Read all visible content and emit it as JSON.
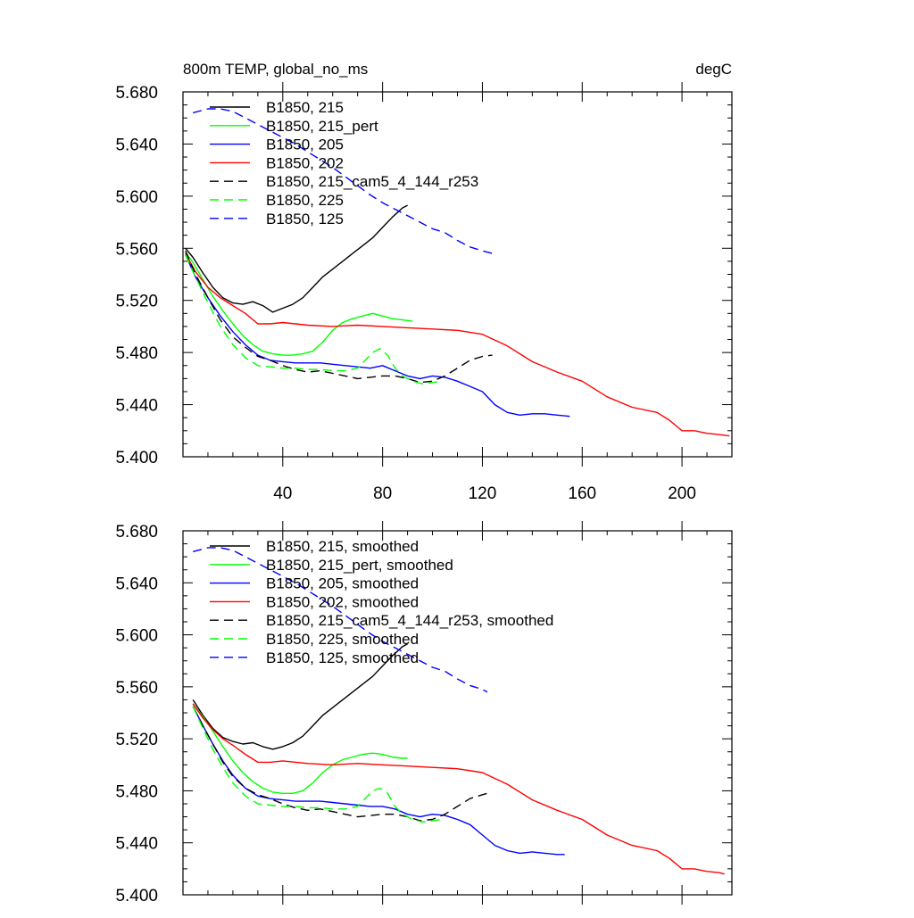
{
  "figure": {
    "title_left": "800m TEMP, global_no_ms",
    "title_right": "degC"
  },
  "chart_data": [
    {
      "type": "line",
      "panel": "top",
      "xlim": [
        0,
        220
      ],
      "ylim": [
        5.4,
        5.68
      ],
      "yticks": [
        "5.400",
        "5.440",
        "5.480",
        "5.520",
        "5.560",
        "5.600",
        "5.640",
        "5.680"
      ],
      "xticks": [
        "40",
        "80",
        "120",
        "160",
        "200"
      ],
      "legend_position": "top-left",
      "grid": false,
      "series": [
        {
          "name": "B1850, 215",
          "color": "#000000",
          "dash": false,
          "x": [
            1,
            4,
            8,
            12,
            16,
            20,
            24,
            28,
            32,
            36,
            40,
            44,
            48,
            52,
            56,
            60,
            64,
            68,
            72,
            76,
            80,
            84,
            88,
            90
          ],
          "y": [
            5.56,
            5.553,
            5.541,
            5.53,
            5.522,
            5.518,
            5.517,
            5.519,
            5.516,
            5.511,
            5.514,
            5.517,
            5.522,
            5.53,
            5.538,
            5.544,
            5.55,
            5.556,
            5.562,
            5.568,
            5.576,
            5.584,
            5.591,
            5.593
          ]
        },
        {
          "name": "B1850, 215_pert",
          "color": "#00ff00",
          "dash": false,
          "x": [
            1,
            4,
            8,
            12,
            16,
            20,
            24,
            28,
            32,
            36,
            40,
            44,
            48,
            52,
            56,
            60,
            64,
            68,
            72,
            76,
            80,
            84,
            88,
            92
          ],
          "y": [
            5.557,
            5.549,
            5.536,
            5.523,
            5.512,
            5.502,
            5.493,
            5.486,
            5.481,
            5.479,
            5.478,
            5.478,
            5.479,
            5.481,
            5.488,
            5.497,
            5.503,
            5.506,
            5.508,
            5.51,
            5.508,
            5.506,
            5.505,
            5.504
          ]
        },
        {
          "name": "B1850, 205",
          "color": "#0000ff",
          "dash": false,
          "x": [
            1,
            5,
            10,
            15,
            20,
            25,
            30,
            35,
            40,
            45,
            50,
            55,
            60,
            65,
            70,
            75,
            80,
            85,
            90,
            95,
            100,
            105,
            110,
            115,
            120,
            125,
            130,
            135,
            140,
            145,
            150,
            155
          ],
          "y": [
            5.555,
            5.538,
            5.522,
            5.508,
            5.496,
            5.486,
            5.478,
            5.474,
            5.473,
            5.472,
            5.472,
            5.472,
            5.471,
            5.47,
            5.469,
            5.468,
            5.47,
            5.466,
            5.462,
            5.46,
            5.462,
            5.461,
            5.458,
            5.454,
            5.45,
            5.44,
            5.434,
            5.432,
            5.433,
            5.433,
            5.432,
            5.431
          ]
        },
        {
          "name": "B1850, 202",
          "color": "#ff0000",
          "dash": false,
          "x": [
            1,
            5,
            10,
            15,
            20,
            25,
            30,
            35,
            40,
            50,
            60,
            70,
            80,
            90,
            100,
            110,
            120,
            130,
            140,
            150,
            160,
            170,
            180,
            190,
            195,
            200,
            205,
            210,
            215,
            219
          ],
          "y": [
            5.556,
            5.542,
            5.53,
            5.522,
            5.516,
            5.51,
            5.502,
            5.502,
            5.503,
            5.501,
            5.5,
            5.501,
            5.5,
            5.499,
            5.498,
            5.497,
            5.494,
            5.485,
            5.473,
            5.465,
            5.458,
            5.446,
            5.438,
            5.434,
            5.428,
            5.42,
            5.42,
            5.418,
            5.417,
            5.416
          ]
        },
        {
          "name": "B1850, 215_cam5_4_144_r253",
          "color": "#000000",
          "dash": true,
          "x": [
            1,
            5,
            10,
            15,
            20,
            25,
            30,
            35,
            40,
            45,
            50,
            55,
            60,
            65,
            70,
            75,
            80,
            85,
            90,
            95,
            100,
            105,
            110,
            115,
            120,
            124
          ],
          "y": [
            5.558,
            5.54,
            5.522,
            5.505,
            5.492,
            5.484,
            5.477,
            5.474,
            5.47,
            5.467,
            5.465,
            5.466,
            5.464,
            5.462,
            5.46,
            5.461,
            5.462,
            5.462,
            5.46,
            5.457,
            5.458,
            5.462,
            5.468,
            5.474,
            5.477,
            5.478
          ]
        },
        {
          "name": "B1850, 225",
          "color": "#00ff00",
          "dash": true,
          "x": [
            1,
            5,
            10,
            15,
            20,
            25,
            30,
            35,
            40,
            45,
            50,
            55,
            60,
            65,
            70,
            73,
            76,
            79,
            82,
            85,
            88,
            92,
            96,
            100,
            104
          ],
          "y": [
            5.555,
            5.538,
            5.518,
            5.5,
            5.486,
            5.476,
            5.47,
            5.469,
            5.468,
            5.468,
            5.467,
            5.467,
            5.466,
            5.466,
            5.468,
            5.474,
            5.48,
            5.483,
            5.478,
            5.468,
            5.462,
            5.458,
            5.456,
            5.457,
            5.458
          ]
        },
        {
          "name": "B1850, 125",
          "color": "#0000ff",
          "dash": true,
          "x": [
            4,
            10,
            15,
            20,
            25,
            30,
            35,
            40,
            45,
            50,
            55,
            60,
            65,
            70,
            75,
            80,
            85,
            90,
            95,
            100,
            105,
            110,
            115,
            120,
            124
          ],
          "y": [
            5.664,
            5.667,
            5.667,
            5.665,
            5.66,
            5.655,
            5.65,
            5.645,
            5.64,
            5.634,
            5.628,
            5.622,
            5.615,
            5.608,
            5.601,
            5.595,
            5.59,
            5.585,
            5.58,
            5.575,
            5.572,
            5.566,
            5.561,
            5.558,
            5.556
          ]
        }
      ]
    },
    {
      "type": "line",
      "panel": "bottom",
      "xlim": [
        0,
        220
      ],
      "ylim": [
        5.4,
        5.68
      ],
      "yticks": [
        "5.400",
        "5.440",
        "5.480",
        "5.520",
        "5.560",
        "5.600",
        "5.640",
        "5.680"
      ],
      "xticks": [],
      "legend_position": "top-left",
      "grid": false,
      "series": [
        {
          "name": "B1850, 215, smoothed",
          "color": "#000000",
          "dash": false,
          "x": [
            4,
            8,
            12,
            16,
            20,
            24,
            28,
            32,
            36,
            40,
            44,
            48,
            52,
            56,
            60,
            64,
            68,
            72,
            76,
            80,
            84,
            88,
            90
          ],
          "y": [
            5.55,
            5.538,
            5.528,
            5.521,
            5.518,
            5.516,
            5.517,
            5.514,
            5.512,
            5.514,
            5.517,
            5.522,
            5.53,
            5.538,
            5.544,
            5.55,
            5.556,
            5.562,
            5.568,
            5.576,
            5.584,
            5.591,
            5.593
          ]
        },
        {
          "name": "B1850, 215_pert, smoothed",
          "color": "#00ff00",
          "dash": false,
          "x": [
            4,
            8,
            12,
            16,
            20,
            24,
            28,
            32,
            36,
            40,
            44,
            48,
            52,
            56,
            60,
            64,
            68,
            72,
            76,
            80,
            84,
            88,
            90
          ],
          "y": [
            5.547,
            5.537,
            5.526,
            5.514,
            5.503,
            5.494,
            5.487,
            5.482,
            5.479,
            5.478,
            5.478,
            5.48,
            5.486,
            5.494,
            5.5,
            5.504,
            5.506,
            5.508,
            5.509,
            5.508,
            5.506,
            5.505,
            5.505
          ]
        },
        {
          "name": "B1850, 205, smoothed",
          "color": "#0000ff",
          "dash": false,
          "x": [
            4,
            8,
            12,
            16,
            20,
            25,
            30,
            35,
            40,
            45,
            50,
            55,
            60,
            65,
            70,
            75,
            80,
            85,
            90,
            95,
            100,
            105,
            110,
            115,
            120,
            125,
            130,
            135,
            140,
            145,
            150,
            153
          ],
          "y": [
            5.545,
            5.53,
            5.516,
            5.503,
            5.492,
            5.482,
            5.476,
            5.474,
            5.473,
            5.472,
            5.472,
            5.472,
            5.471,
            5.47,
            5.469,
            5.468,
            5.468,
            5.466,
            5.462,
            5.46,
            5.462,
            5.461,
            5.458,
            5.454,
            5.446,
            5.438,
            5.434,
            5.432,
            5.433,
            5.432,
            5.431,
            5.431
          ]
        },
        {
          "name": "B1850, 202, smoothed",
          "color": "#ff0000",
          "dash": false,
          "x": [
            4,
            8,
            12,
            16,
            20,
            25,
            30,
            35,
            40,
            50,
            60,
            70,
            80,
            90,
            100,
            110,
            120,
            130,
            140,
            150,
            160,
            170,
            180,
            190,
            195,
            200,
            205,
            210,
            215,
            217
          ],
          "y": [
            5.547,
            5.536,
            5.527,
            5.52,
            5.515,
            5.508,
            5.502,
            5.502,
            5.503,
            5.501,
            5.5,
            5.501,
            5.5,
            5.499,
            5.498,
            5.497,
            5.494,
            5.485,
            5.473,
            5.465,
            5.458,
            5.446,
            5.438,
            5.434,
            5.428,
            5.42,
            5.42,
            5.418,
            5.417,
            5.416
          ]
        },
        {
          "name": "B1850, 215_cam5_4_144_r253, smoothed",
          "color": "#000000",
          "dash": true,
          "x": [
            4,
            8,
            12,
            16,
            20,
            25,
            30,
            35,
            40,
            45,
            50,
            55,
            60,
            65,
            70,
            75,
            80,
            85,
            90,
            95,
            100,
            105,
            110,
            115,
            120,
            122
          ],
          "y": [
            5.545,
            5.53,
            5.516,
            5.502,
            5.491,
            5.482,
            5.477,
            5.474,
            5.47,
            5.467,
            5.465,
            5.466,
            5.464,
            5.462,
            5.46,
            5.461,
            5.462,
            5.462,
            5.46,
            5.457,
            5.458,
            5.462,
            5.468,
            5.474,
            5.477,
            5.478
          ]
        },
        {
          "name": "B1850, 225, smoothed",
          "color": "#00ff00",
          "dash": true,
          "x": [
            4,
            8,
            12,
            16,
            20,
            25,
            30,
            35,
            40,
            45,
            50,
            55,
            60,
            65,
            70,
            73,
            76,
            79,
            82,
            85,
            88,
            92,
            96,
            100,
            104
          ],
          "y": [
            5.545,
            5.528,
            5.512,
            5.498,
            5.486,
            5.476,
            5.47,
            5.469,
            5.468,
            5.468,
            5.467,
            5.467,
            5.466,
            5.466,
            5.468,
            5.474,
            5.48,
            5.482,
            5.478,
            5.468,
            5.462,
            5.458,
            5.456,
            5.457,
            5.458
          ]
        },
        {
          "name": "B1850, 125, smoothed",
          "color": "#0000ff",
          "dash": true,
          "x": [
            4,
            10,
            15,
            20,
            25,
            30,
            35,
            40,
            45,
            50,
            55,
            60,
            65,
            70,
            75,
            80,
            85,
            90,
            95,
            100,
            105,
            110,
            115,
            120,
            122
          ],
          "y": [
            5.664,
            5.667,
            5.667,
            5.665,
            5.66,
            5.655,
            5.65,
            5.645,
            5.64,
            5.634,
            5.628,
            5.622,
            5.615,
            5.608,
            5.601,
            5.595,
            5.59,
            5.585,
            5.58,
            5.575,
            5.572,
            5.566,
            5.561,
            5.558,
            5.556
          ]
        }
      ]
    }
  ]
}
